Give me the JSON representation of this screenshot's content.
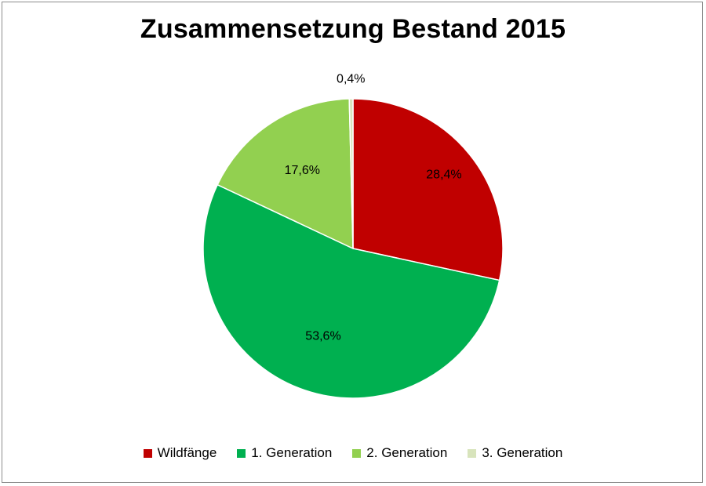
{
  "chart_data": {
    "type": "pie",
    "title": "Zusammensetzung Bestand 2015",
    "slices": [
      {
        "name": "Wildfänge",
        "value": 28.4,
        "label": "28,4%",
        "color": "#c00000"
      },
      {
        "name": "1. Generation",
        "value": 53.6,
        "label": "53,6%",
        "color": "#00b050"
      },
      {
        "name": "2. Generation",
        "value": 17.6,
        "label": "17,6%",
        "color": "#92d050"
      },
      {
        "name": "3. Generation",
        "value": 0.4,
        "label": "0,4%",
        "color": "#d8e4bc"
      }
    ],
    "legend_position": "bottom"
  }
}
